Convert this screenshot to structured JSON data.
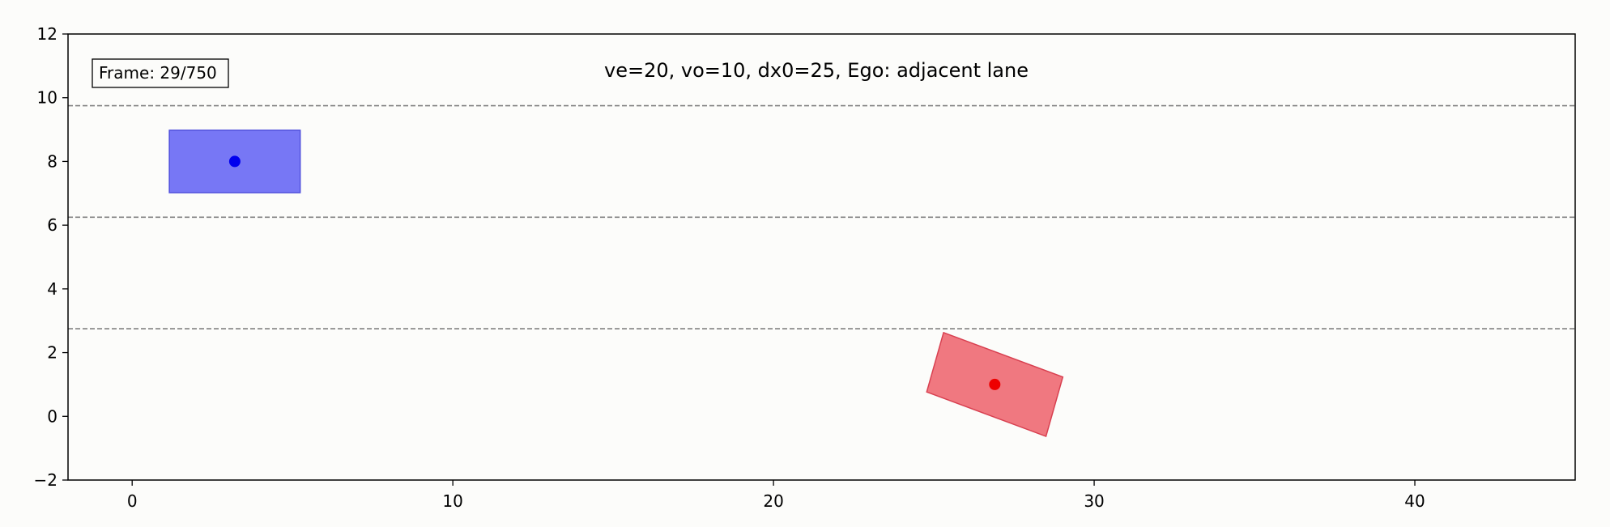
{
  "chart_data": {
    "type": "scatter",
    "title": "ve=20, vo=10, dx0=25, Ego: adjacent lane",
    "xlabel": "",
    "ylabel": "",
    "xlim": [
      -2,
      45
    ],
    "ylim": [
      -2,
      12
    ],
    "xticks": [
      0,
      10,
      20,
      30,
      40
    ],
    "yticks": [
      -2,
      0,
      2,
      4,
      6,
      8,
      10,
      12
    ],
    "grid": false,
    "annotation": "Frame: 29/750",
    "lane_lines": [
      2.75,
      6.25,
      9.75
    ],
    "vehicles": [
      {
        "name": "blue",
        "x": 3.2,
        "y": 8.0,
        "length": 4.8,
        "width": 2.0,
        "heading_deg": 0,
        "fill": "#7777f5",
        "edge": "#5050dd",
        "center_color": "#0000ee"
      },
      {
        "name": "red",
        "x": 26.9,
        "y": 1.0,
        "length": 4.6,
        "width": 2.0,
        "heading_deg": -18,
        "fill": "#f07880",
        "edge": "#d84050",
        "center_color": "#ee0000"
      }
    ]
  }
}
